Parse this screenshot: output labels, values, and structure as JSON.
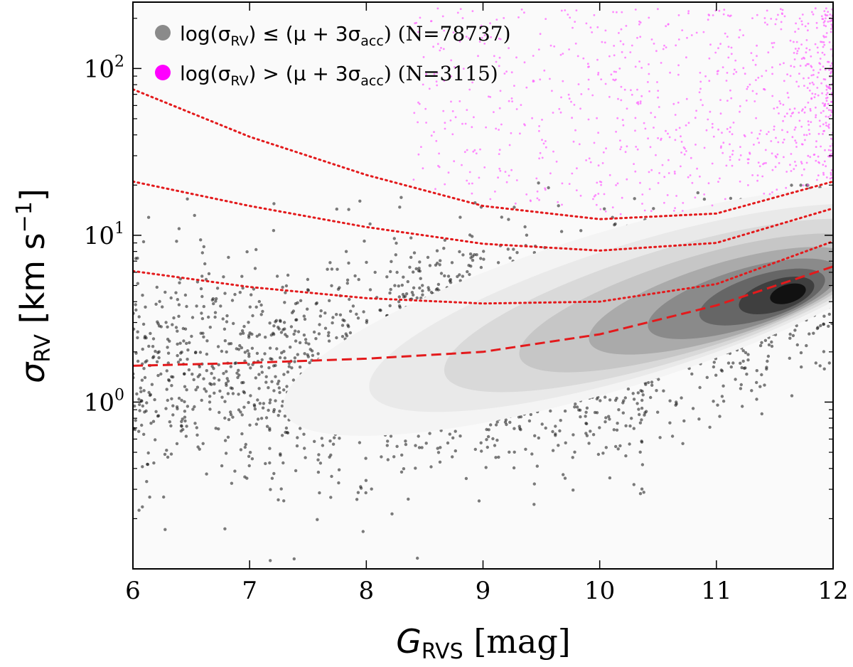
{
  "chart_data": {
    "type": "scatter",
    "xlabel": {
      "symbol": "G",
      "subscript": "RVS",
      "unit": " [mag]"
    },
    "ylabel": {
      "symbol": "σ",
      "subscript": "RV",
      "unit_prefix": " [km s",
      "unit_exp": "−1",
      "unit_suffix": "]"
    },
    "xlim": [
      6,
      12
    ],
    "ylim": [
      0.1,
      250
    ],
    "yscale": "log",
    "x_ticks": [
      "6",
      "7",
      "8",
      "9",
      "10",
      "11",
      "12"
    ],
    "y_ticks": [
      {
        "value": 1,
        "base": "10",
        "exp": "0"
      },
      {
        "value": 10,
        "base": "10",
        "exp": "1"
      },
      {
        "value": 100,
        "base": "10",
        "exp": "2"
      }
    ],
    "legend": {
      "placement": "top-left",
      "entries": [
        {
          "prefix": "log(σ",
          "sub1": "RV",
          "mid": ") ≤ (μ + 3σ",
          "sub2": "acc",
          "suffix": ") (N=78737)",
          "color": "#8a8a8a"
        },
        {
          "prefix": "log(σ",
          "sub1": "RV",
          "mid": ") > (μ + 3σ",
          "sub2": "acc",
          "suffix": ") (N=3115)",
          "color": "#ff00ff"
        }
      ]
    },
    "series": [
      {
        "name": "log(σRV) ≤ (μ + 3σacc)",
        "count": 78737,
        "color": "#111111"
      },
      {
        "name": "log(σRV) > (μ + 3σacc)",
        "count": 3115,
        "color": "#ff66ff"
      }
    ],
    "curves": [
      {
        "style": "dashed",
        "color": "#e31a1c",
        "x": [
          6,
          7,
          8,
          9,
          10,
          11,
          12
        ],
        "y": [
          1.65,
          1.72,
          1.82,
          2.0,
          2.55,
          3.8,
          6.5
        ]
      },
      {
        "style": "dotted",
        "color": "#e31a1c",
        "x": [
          6,
          7,
          8,
          9,
          10,
          11,
          12
        ],
        "y": [
          6.1,
          4.9,
          4.2,
          3.9,
          4.0,
          5.1,
          9.2
        ]
      },
      {
        "style": "dotted",
        "color": "#e31a1c",
        "x": [
          6,
          7,
          8,
          9,
          10,
          11,
          12
        ],
        "y": [
          21,
          15,
          11.2,
          8.9,
          8.1,
          9.0,
          14.5
        ]
      },
      {
        "style": "dotted",
        "color": "#e31a1c",
        "x": [
          6,
          7,
          8,
          9,
          10,
          11,
          12
        ],
        "y": [
          75,
          39,
          23,
          15,
          12.5,
          13.5,
          21
        ]
      }
    ],
    "density_peak": {
      "x": 11.7,
      "y": 4.6
    },
    "colors": {
      "background": "#fafafa",
      "axis": "#000000",
      "accent": "#e31a1c"
    }
  }
}
